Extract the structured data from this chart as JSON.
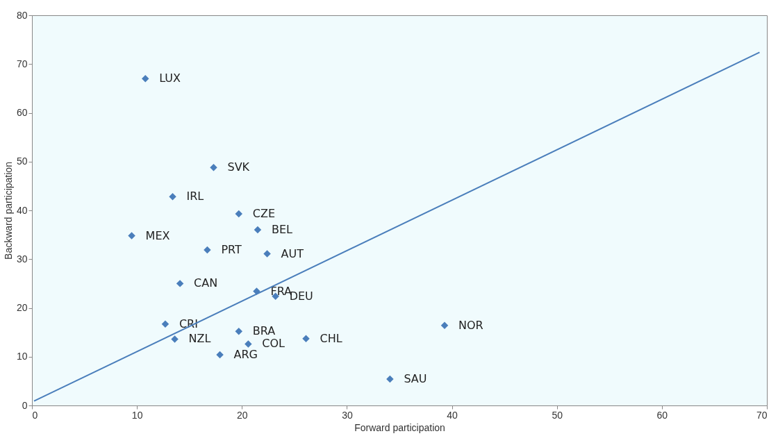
{
  "chart_data": {
    "type": "scatter",
    "xlabel": "Forward participation",
    "ylabel": "Backward participation",
    "xlim": [
      0,
      70
    ],
    "xticks": [
      0,
      10,
      20,
      30,
      40,
      50,
      60,
      70
    ],
    "ylim": [
      0,
      80
    ],
    "yticks": [
      0,
      10,
      20,
      30,
      40,
      50,
      60,
      70,
      80
    ],
    "grid": false,
    "series": [
      {
        "color": "#4a7ebb",
        "marker": "diamond",
        "x": [
          10.8,
          17.3,
          13.4,
          19.7,
          21.5,
          9.5,
          16.7,
          22.4,
          14.1,
          21.4,
          23.2,
          12.7,
          13.6,
          19.7,
          20.6,
          17.9,
          26.1,
          39.3,
          34.1
        ],
        "values": [
          67.0,
          48.8,
          42.8,
          39.3,
          36.0,
          34.8,
          31.9,
          31.1,
          25.0,
          23.4,
          22.4,
          16.7,
          13.6,
          15.2,
          12.6,
          10.4,
          13.7,
          16.4,
          5.4
        ],
        "value_labels": [
          "LUX",
          "SVK",
          "IRL",
          "CZE",
          "BEL",
          "MEX",
          "PRT",
          "AUT",
          "CAN",
          "FRA",
          "DEU",
          "CRI",
          "NZL",
          "BRA",
          "COL",
          "ARG",
          "CHL",
          "NOR",
          "SAU"
        ]
      },
      {
        "type": "line",
        "color": "#4a7ebb",
        "x": [
          0.2,
          69.3
        ],
        "values": [
          0.9,
          72.4
        ],
        "line_style": "solid",
        "marker": "none"
      }
    ]
  }
}
